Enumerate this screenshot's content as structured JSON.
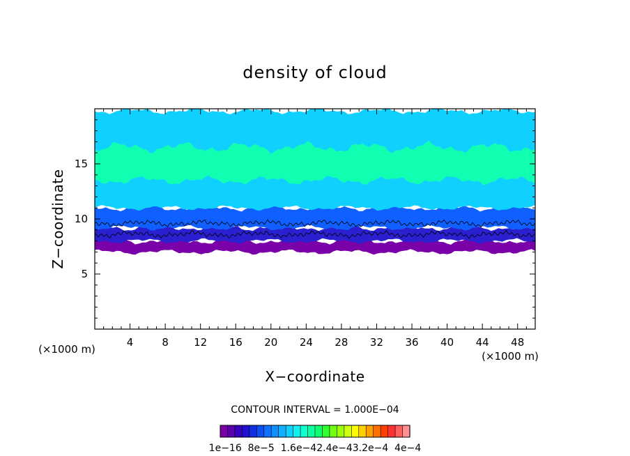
{
  "chart_data": {
    "type": "heatmap",
    "title": "density of cloud",
    "xlabel": "X−coordinate",
    "ylabel": "Z−coordinate",
    "x_unit_label": "(×1000 m)",
    "y_unit_label": "(×1000 m)",
    "xlim": [
      0,
      50
    ],
    "ylim": [
      0,
      20
    ],
    "x_ticks": [
      4,
      8,
      12,
      16,
      20,
      24,
      28,
      32,
      36,
      40,
      44,
      48
    ],
    "y_ticks": [
      5,
      10,
      15
    ],
    "contour_interval_text": "CONTOUR INTERVAL = 1.000E−04",
    "colorbar_labels": [
      "1e−16",
      "8e−5",
      "1.6e−4",
      "2.4e−4",
      "3.2e−4",
      "4e−4"
    ],
    "colorbar_labels_joined": "1e−16  8e−5  1.6e−42.4e−43.2e−4  4e−4",
    "colorbar_colors": [
      "#7a00a8",
      "#5a00b0",
      "#3a00c0",
      "#2010d0",
      "#1030e0",
      "#1050f0",
      "#1070ff",
      "#1090ff",
      "#10b0ff",
      "#10d0ff",
      "#10f0f0",
      "#10ffd0",
      "#10ffa0",
      "#10ff70",
      "#30ff30",
      "#70ff10",
      "#a0ff10",
      "#d0ff10",
      "#ffff00",
      "#ffd000",
      "#ffa000",
      "#ff7000",
      "#ff4000",
      "#ff3030",
      "#ff6060",
      "#ff9090"
    ],
    "cloud_layers": [
      {
        "level": "base",
        "z_bottom_km": 7.0,
        "z_top_km": 8.0,
        "color": "#7a00a8"
      },
      {
        "level": "low",
        "z_bottom_km": 8.0,
        "z_top_km": 9.2,
        "color": "#2a20d0"
      },
      {
        "level": "mid",
        "z_bottom_km": 9.2,
        "z_top_km": 11.0,
        "color": "#1060ff"
      },
      {
        "level": "upper",
        "z_bottom_km": 11.0,
        "z_top_km": 19.8,
        "color": "#10d0ff"
      },
      {
        "level": "core",
        "z_bottom_km": 13.5,
        "z_top_km": 16.5,
        "color": "#10ffb0"
      }
    ]
  }
}
